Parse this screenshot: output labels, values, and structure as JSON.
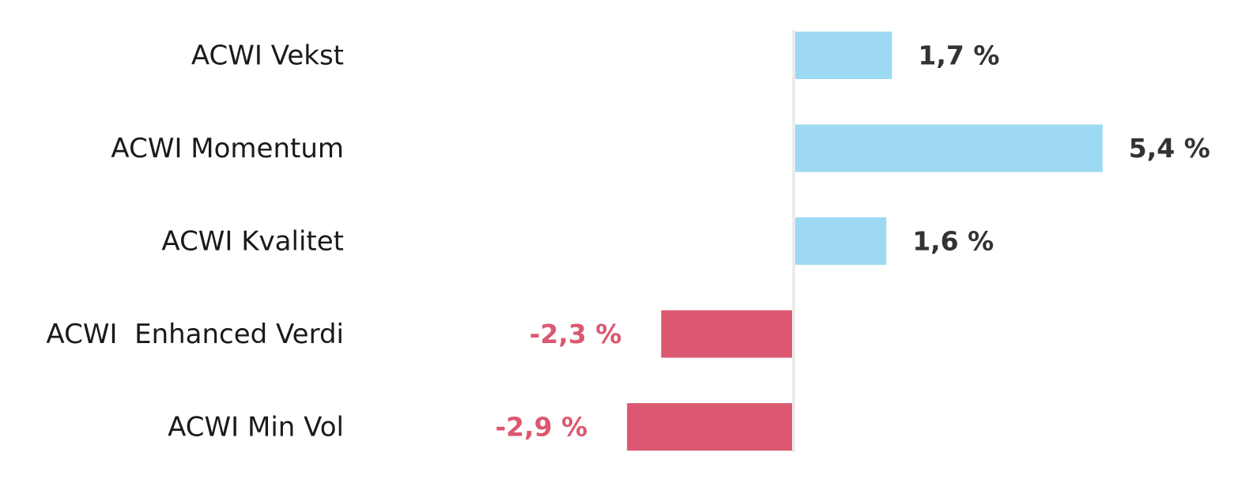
{
  "chart_data": {
    "type": "bar",
    "orientation": "horizontal",
    "categories": [
      "ACWI Vekst",
      "ACWI Momentum",
      "ACWI Kvalitet",
      "ACWI  Enhanced Verdi",
      "ACWI Min Vol"
    ],
    "values": [
      1.7,
      5.4,
      1.6,
      -2.3,
      -2.9
    ],
    "value_labels": [
      "1,7 %",
      "5,4 %",
      "1,6 %",
      "-2,3 %",
      "-2,9 %"
    ],
    "colors": [
      "#9dd9f2",
      "#9dd9f2",
      "#9dd9f2",
      "#dc5870",
      "#dc5870"
    ]
  }
}
